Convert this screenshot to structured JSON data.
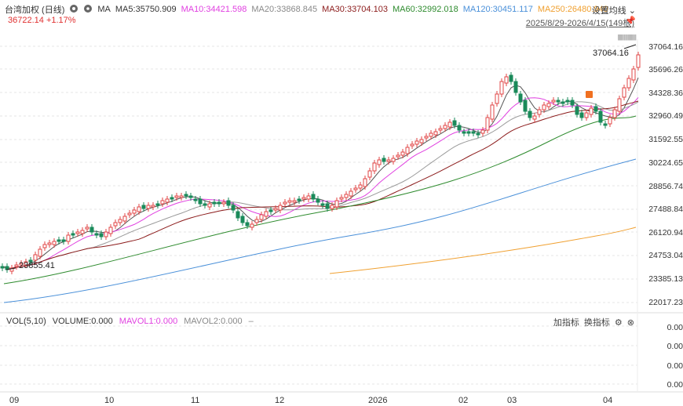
{
  "header": {
    "symbol": "台湾加权 (日线)",
    "ma_label": "MA",
    "ma5": "MA5:35750.909",
    "ma10": "MA10:34421.598",
    "ma20": "MA20:33868.845",
    "ma30": "MA30:33704.103",
    "ma60": "MA60:32992.018",
    "ma120": "MA120:30451.117",
    "ma250": "MA250:26480.940",
    "last_price": "36722.14",
    "change_pct": "+1.17%",
    "settings_label": "设置均线",
    "date_range": "2025/8/29-2026/4/15(149根)",
    "ruler_text": "||||||||||||||||||||||"
  },
  "colors": {
    "up": "#e04545",
    "down": "#1a8a5a",
    "ma5": "#555555",
    "ma10": "#e040e0",
    "ma20": "#999999",
    "ma30": "#8b1a1a",
    "ma60": "#2e8b2e",
    "ma120": "#4a90d9",
    "ma250": "#f0a030"
  },
  "y_axis": [
    "37064.16",
    "35696.26",
    "34328.36",
    "32960.49",
    "31592.55",
    "30224.65",
    "28856.74",
    "27488.84",
    "26120.94",
    "24753.04",
    "23385.13",
    "22017.23"
  ],
  "annotations": {
    "high": "37064.16",
    "low": "23855.41"
  },
  "volume": {
    "title": "VOL(5,10)",
    "volume": "VOLUME:0.000",
    "mavol1": "MAVOL1:0.000",
    "mavol2": "MAVOL2:0.000",
    "add_indicator": "加指标",
    "switch_indicator": "换指标",
    "axis": [
      "0.00",
      "0.00",
      "0.00",
      "0.00"
    ]
  },
  "x_axis": [
    "09",
    "10",
    "11",
    "12",
    "2026",
    "02",
    "03",
    "04"
  ]
}
